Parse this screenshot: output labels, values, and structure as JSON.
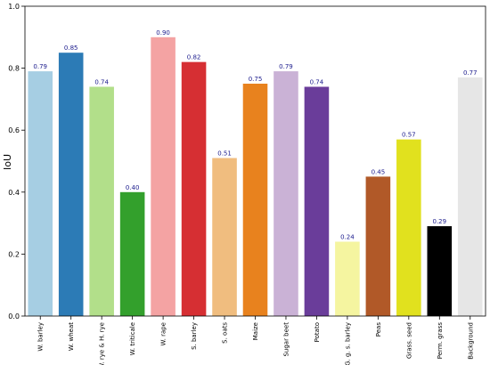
{
  "chart_data": {
    "type": "bar",
    "title": "",
    "xlabel": "",
    "ylabel": "IoU",
    "ylim": [
      0.0,
      1.0
    ],
    "yticks": [
      "0.0",
      "0.2",
      "0.4",
      "0.6",
      "0.8",
      "1.0"
    ],
    "grid": false,
    "label_color": "#1a1a8c",
    "categories": [
      "W. barley",
      "W. wheat",
      "W. rye & H. rye",
      "W. triticale",
      "W. rape",
      "S. barley",
      "S. oats",
      "Maize",
      "Sugar beet",
      "Potato",
      "G. g. s. barley",
      "Peas",
      "Grass. seed",
      "Perm. grass",
      "Background"
    ],
    "values": [
      0.79,
      0.85,
      0.74,
      0.4,
      0.9,
      0.82,
      0.51,
      0.75,
      0.79,
      0.74,
      0.24,
      0.45,
      0.57,
      0.29,
      0.77
    ],
    "value_labels": [
      "0.79",
      "0.85",
      "0.74",
      "0.40",
      "0.90",
      "0.82",
      "0.51",
      "0.75",
      "0.79",
      "0.74",
      "0.24",
      "0.45",
      "0.57",
      "0.29",
      "0.77"
    ],
    "colors": [
      "#a6cee3",
      "#2c7bb6",
      "#b2df8a",
      "#33a02c",
      "#f4a3a3",
      "#d62f33",
      "#f0bd7f",
      "#e8821e",
      "#cab2d6",
      "#6a3d9a",
      "#f5f5a0",
      "#b15928",
      "#e1e11e",
      "#000000",
      "#e6e6e6"
    ]
  }
}
